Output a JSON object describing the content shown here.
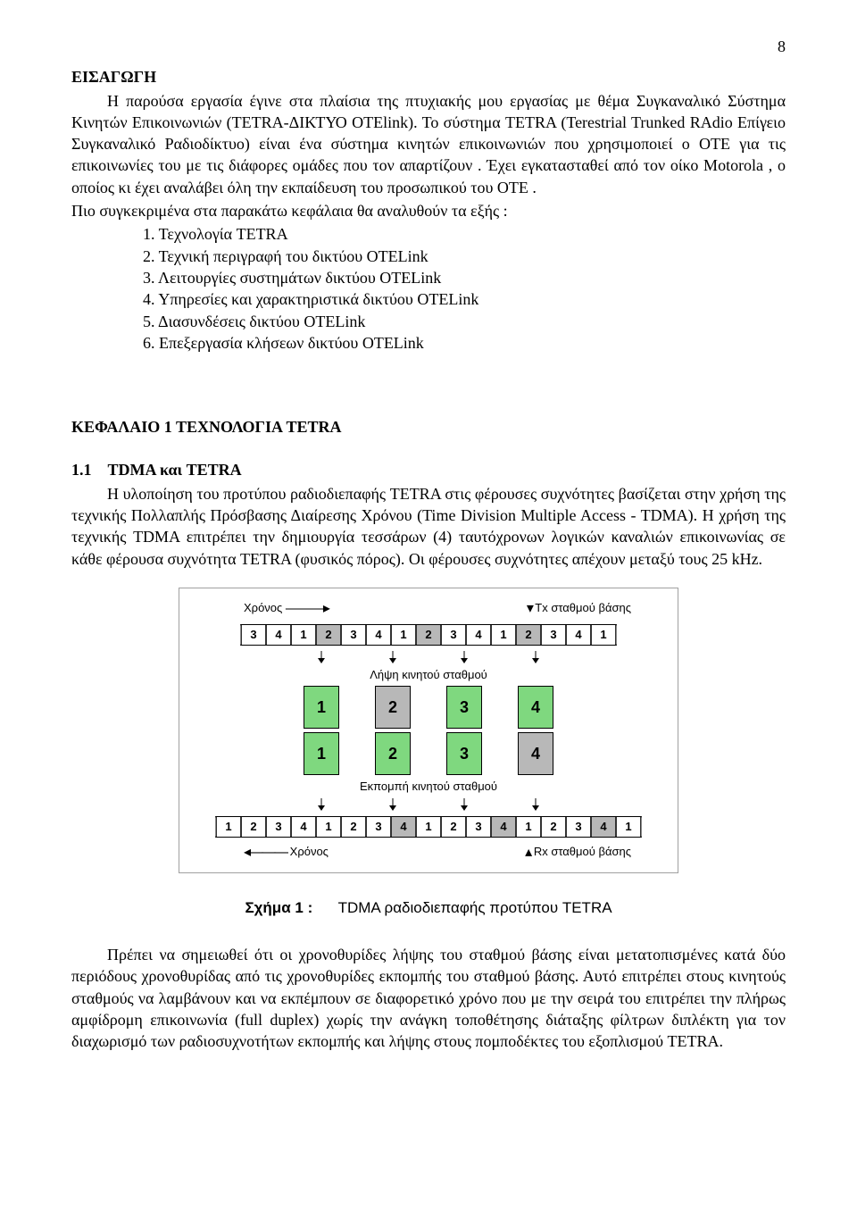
{
  "page_number": "8",
  "intro": {
    "title": "ΕΙΣΑΓΩΓΗ",
    "p1": "Η παρούσα εργασία έγινε στα πλαίσια της πτυχιακής μου εργασίας με θέμα Συγκαναλικό Σύστημα Κινητών Επικοινωνιών (TETRA-ΔΙΚΤΥΟ OTElink). Το σύστημα TETRA (Terestrial Trunked RAdio Επίγειο Συγκαναλικό Ραδιοδίκτυο) είναι ένα σύστημα κινητών επικοινωνιών που χρησιμοποιεί ο ΟΤΕ για τις επικοινωνίες του με τις διάφορες ομάδες που τον απαρτίζουν . Έχει εγκατασταθεί από τον οίκο Motorola , ο οποίος κι έχει αναλάβει όλη την εκπαίδευση του προσωπικού του ΟΤΕ .",
    "p2": "Πιο συγκεκριμένα στα παρακάτω κεφάλαια θα αναλυθούν τα εξής :",
    "list": [
      "1.  Τεχνολογία TETRA",
      "2.  Τεχνική περιγραφή του δικτύου OTELink",
      "3.  Λειτουργίες συστημάτων δικτύου OTELink",
      "4.  Υπηρεσίες και χαρακτηριστικά δικτύου OTELink",
      "5.  Διασυνδέσεις δικτύου OTELink",
      "6.  Επεξεργασία κλήσεων δικτύου OTELink"
    ]
  },
  "chapter": {
    "title": "ΚΕΦΑΛΑΙΟ 1   ΤΕΧΝΟΛΟΓΙΑ TETRA",
    "sub_num": "1.1",
    "sub_title": "TDMA και TETRA",
    "p1": "Η υλοποίηση του προτύπου ραδιοδιεπαφής TETRA στις φέρουσες συχνότητες βασίζεται στην χρήση της τεχνικής Πολλαπλής Πρόσβασης Διαίρεσης Χρόνου (Time Division Multiple Access - TDMA). Η χρήση της τεχνικής TDMA επιτρέπει την δημιουργία τεσσάρων (4) ταυτόχρονων λογικών καναλιών επικοινωνίας σε κάθε φέρουσα συχνότητα TETRA (φυσικός πόρος). Οι φέρουσες συχνότητες απέχουν μεταξύ τους 25 kHz."
  },
  "figure": {
    "top_left_label": "Χρόνος",
    "top_right_label": "Τx σταθμού βάσης",
    "mid_label_1": "Λήψη κινητού σταθμού",
    "mid_label_2": "Εκπομπή κινητού σταθμού",
    "bottom_left_label": "Χρόνος",
    "bottom_right_label": "Rx σταθμού βάσης",
    "caption_bold": "Σχήμα 1 :",
    "caption_text": "TDMA ραδιοδιεπαφής προτύπου  TETRA",
    "colors": {
      "slot_gray": "#b8b8b8",
      "slot_white": "#ffffff",
      "big_green": "#7fd87f",
      "big_gray": "#b8b8b8",
      "border": "#000000",
      "frame_border": "#a0a0a0"
    },
    "track1_slots": [
      {
        "n": "3",
        "c": "w"
      },
      {
        "n": "4",
        "c": "w"
      },
      {
        "n": "1",
        "c": "w"
      },
      {
        "n": "2",
        "c": "g"
      },
      {
        "n": "3",
        "c": "w"
      },
      {
        "n": "4",
        "c": "w"
      },
      {
        "n": "1",
        "c": "w"
      },
      {
        "n": "2",
        "c": "g"
      },
      {
        "n": "3",
        "c": "w"
      },
      {
        "n": "4",
        "c": "w"
      },
      {
        "n": "1",
        "c": "w"
      },
      {
        "n": "2",
        "c": "g"
      },
      {
        "n": "3",
        "c": "w"
      },
      {
        "n": "4",
        "c": "w"
      },
      {
        "n": "1",
        "c": "w"
      }
    ],
    "big_rx": [
      {
        "n": "1",
        "c": "green"
      },
      {
        "n": "2",
        "c": "gray"
      },
      {
        "n": "3",
        "c": "green"
      },
      {
        "n": "4",
        "c": "green"
      }
    ],
    "big_tx": [
      {
        "n": "1",
        "c": "green"
      },
      {
        "n": "2",
        "c": "green"
      },
      {
        "n": "3",
        "c": "green"
      },
      {
        "n": "4",
        "c": "gray"
      }
    ],
    "track2_slots": [
      {
        "n": "1",
        "c": "w"
      },
      {
        "n": "2",
        "c": "w"
      },
      {
        "n": "3",
        "c": "w"
      },
      {
        "n": "4",
        "c": "w"
      },
      {
        "n": "1",
        "c": "w"
      },
      {
        "n": "2",
        "c": "w"
      },
      {
        "n": "3",
        "c": "w"
      },
      {
        "n": "4",
        "c": "g"
      },
      {
        "n": "1",
        "c": "w"
      },
      {
        "n": "2",
        "c": "w"
      },
      {
        "n": "3",
        "c": "w"
      },
      {
        "n": "4",
        "c": "g"
      },
      {
        "n": "1",
        "c": "w"
      },
      {
        "n": "2",
        "c": "w"
      },
      {
        "n": "3",
        "c": "w"
      },
      {
        "n": "4",
        "c": "g"
      },
      {
        "n": "1",
        "c": "w"
      }
    ]
  },
  "closing_para": "Πρέπει να σημειωθεί ότι οι χρονοθυρίδες λήψης του σταθμού βάσης είναι μετατοπισμένες κατά δύο περιόδους χρονοθυρίδας από τις χρονοθυρίδες εκπομπής του σταθμού βάσης. Αυτό επιτρέπει στους κινητούς σταθμούς να λαμβάνουν και να εκπέμπουν σε διαφορετικό χρόνο που με την σειρά του επιτρέπει την πλήρως αμφίδρομη επικοινωνία (full duplex) χωρίς την ανάγκη τοποθέτησης διάταξης φίλτρων διπλέκτη για τον διαχωρισμό των ραδιοσυχνοτήτων εκπομπής και λήψης στους πομποδέκτες του εξοπλισμού TETRA."
}
